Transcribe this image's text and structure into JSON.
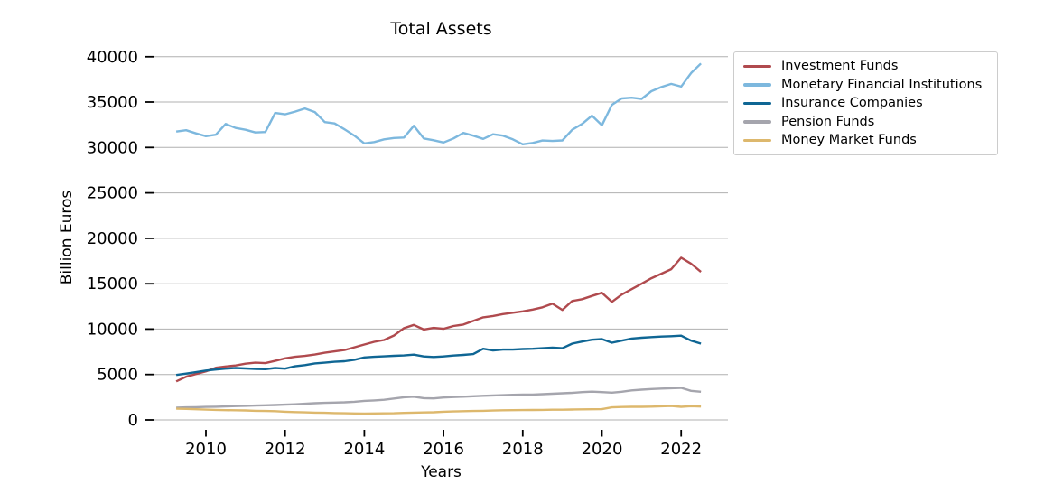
{
  "chart_data": {
    "type": "line",
    "title": "Total Assets",
    "xlabel": "Years",
    "ylabel": "Billion Euros",
    "grid": true,
    "legend_position": "upper right",
    "xticks": [
      2010,
      2012,
      2014,
      2016,
      2018,
      2020,
      2022
    ],
    "yticks": [
      0,
      5000,
      10000,
      15000,
      20000,
      25000,
      30000,
      35000,
      40000
    ],
    "xlim": [
      2008.7,
      2023.2
    ],
    "ylim": [
      -1100,
      41300
    ],
    "colors": {
      "grid": "#b0b0b0",
      "tick": "#000000",
      "text": "#000000",
      "legend_border": "#cccccc",
      "background": "#ffffff"
    },
    "x_unit": "decimal year, quarterly",
    "x": [
      2009.25,
      2009.5,
      2009.75,
      2010.0,
      2010.25,
      2010.5,
      2010.75,
      2011.0,
      2011.25,
      2011.5,
      2011.75,
      2012.0,
      2012.25,
      2012.5,
      2012.75,
      2013.0,
      2013.25,
      2013.5,
      2013.75,
      2014.0,
      2014.25,
      2014.5,
      2014.75,
      2015.0,
      2015.25,
      2015.5,
      2015.75,
      2016.0,
      2016.25,
      2016.5,
      2016.75,
      2017.0,
      2017.25,
      2017.5,
      2017.75,
      2018.0,
      2018.25,
      2018.5,
      2018.75,
      2019.0,
      2019.25,
      2019.5,
      2019.75,
      2020.0,
      2020.25,
      2020.5,
      2020.75,
      2021.0,
      2021.25,
      2021.5,
      2021.75,
      2022.0,
      2022.25,
      2022.5
    ],
    "series": [
      {
        "name": "Investment Funds",
        "color": "#b04a4e",
        "values": [
          4250,
          4750,
          5050,
          5350,
          5750,
          5890,
          6000,
          6200,
          6300,
          6250,
          6500,
          6780,
          6950,
          7050,
          7200,
          7400,
          7550,
          7700,
          8000,
          8300,
          8600,
          8800,
          9300,
          10100,
          10460,
          9950,
          10130,
          10030,
          10340,
          10500,
          10900,
          11300,
          11450,
          11650,
          11800,
          11950,
          12150,
          12400,
          12800,
          12100,
          13100,
          13300,
          13650,
          14000,
          13000,
          13800,
          14400,
          15000,
          15600,
          16100,
          16600,
          17860,
          17200,
          16300
        ]
      },
      {
        "name": "Monetary Financial Institutions",
        "color": "#7db8de",
        "values": [
          31750,
          31900,
          31550,
          31250,
          31400,
          32600,
          32150,
          31950,
          31650,
          31700,
          33800,
          33650,
          33950,
          34300,
          33900,
          32800,
          32650,
          32000,
          31300,
          30450,
          30600,
          30900,
          31050,
          31100,
          32390,
          31000,
          30800,
          30550,
          31000,
          31600,
          31300,
          30950,
          31450,
          31300,
          30900,
          30350,
          30500,
          30770,
          30720,
          30780,
          31950,
          32600,
          33500,
          32450,
          34700,
          35400,
          35480,
          35350,
          36200,
          36650,
          37000,
          36700,
          38200,
          39250
        ]
      },
      {
        "name": "Insurance Companies",
        "color": "#0f6694",
        "values": [
          4950,
          5100,
          5260,
          5440,
          5550,
          5650,
          5720,
          5670,
          5620,
          5590,
          5720,
          5650,
          5910,
          6040,
          6230,
          6300,
          6400,
          6460,
          6620,
          6880,
          6950,
          7000,
          7060,
          7100,
          7190,
          6990,
          6930,
          6990,
          7090,
          7160,
          7250,
          7840,
          7650,
          7750,
          7750,
          7810,
          7840,
          7900,
          7970,
          7900,
          8400,
          8630,
          8830,
          8900,
          8500,
          8730,
          8960,
          9050,
          9120,
          9180,
          9220,
          9280,
          8730,
          8400
        ]
      },
      {
        "name": "Pension Funds",
        "color": "#a5a5ad",
        "values": [
          1350,
          1380,
          1400,
          1430,
          1450,
          1480,
          1520,
          1550,
          1580,
          1610,
          1640,
          1680,
          1720,
          1780,
          1840,
          1880,
          1910,
          1940,
          2000,
          2100,
          2150,
          2220,
          2360,
          2500,
          2560,
          2400,
          2370,
          2470,
          2520,
          2560,
          2610,
          2660,
          2690,
          2720,
          2760,
          2790,
          2790,
          2830,
          2880,
          2930,
          2980,
          3060,
          3110,
          3060,
          3000,
          3100,
          3250,
          3330,
          3400,
          3450,
          3490,
          3530,
          3200,
          3100
        ]
      },
      {
        "name": "Money Market Funds",
        "color": "#ddb86d",
        "values": [
          1230,
          1210,
          1170,
          1130,
          1100,
          1070,
          1065,
          1040,
          1000,
          980,
          960,
          905,
          870,
          840,
          810,
          790,
          760,
          740,
          720,
          710,
          720,
          730,
          740,
          780,
          810,
          830,
          850,
          900,
          930,
          960,
          980,
          1000,
          1030,
          1060,
          1070,
          1080,
          1090,
          1100,
          1120,
          1120,
          1140,
          1160,
          1170,
          1185,
          1380,
          1420,
          1440,
          1440,
          1460,
          1500,
          1540,
          1440,
          1510,
          1470
        ]
      }
    ]
  }
}
